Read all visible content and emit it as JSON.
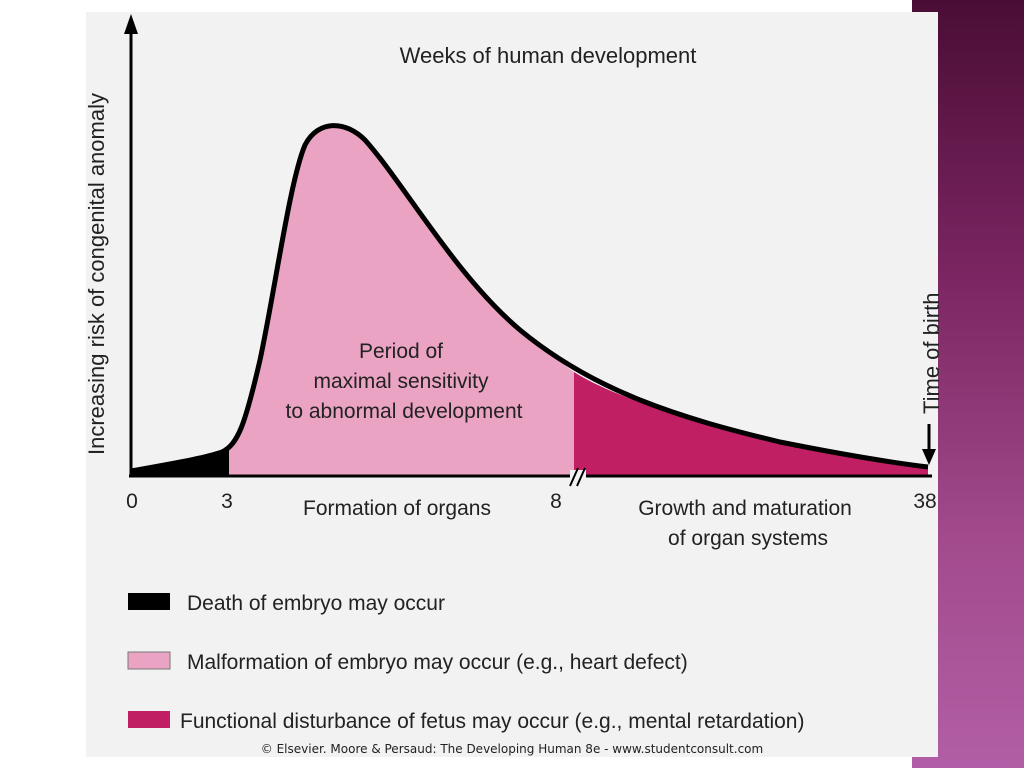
{
  "chart_data": {
    "type": "area",
    "title": "Weeks of human development",
    "ylabel": "Increasing risk of congenital anomaly",
    "x_ticks": [
      "0",
      "3",
      "8",
      "38"
    ],
    "x_break_after": "8",
    "axis_break_symbol": "//",
    "regions": [
      {
        "name": "Formation of organs",
        "from_week": 3,
        "to_week": 8
      },
      {
        "name": "Growth and maturation of organ systems",
        "from_week": 8,
        "to_week": 38
      }
    ],
    "center_label": [
      "Period of",
      "maximal sensitivity",
      "to abnormal development"
    ],
    "region_labels": {
      "formation": "Formation of organs",
      "growth_line1": "Growth and maturation",
      "growth_line2": "of organ systems"
    },
    "birth_label": "Time of birth",
    "birth_week": 38,
    "peak_week": 4.6,
    "legend": [
      {
        "label": "Death of embryo may occur",
        "color": "#000000"
      },
      {
        "label": "Malformation of embryo may occur (e.g., heart defect)",
        "color": "#eba3c4"
      },
      {
        "label": "Functional disturbance of fetus may occur (e.g., mental retardation)",
        "color": "#c01f64"
      }
    ],
    "colors": {
      "death": "#000000",
      "malformation": "#eba3c4",
      "functional": "#c01f64"
    }
  },
  "credit": "© Elsevier. Moore & Persaud: The Developing Human 8e - www.studentconsult.com"
}
